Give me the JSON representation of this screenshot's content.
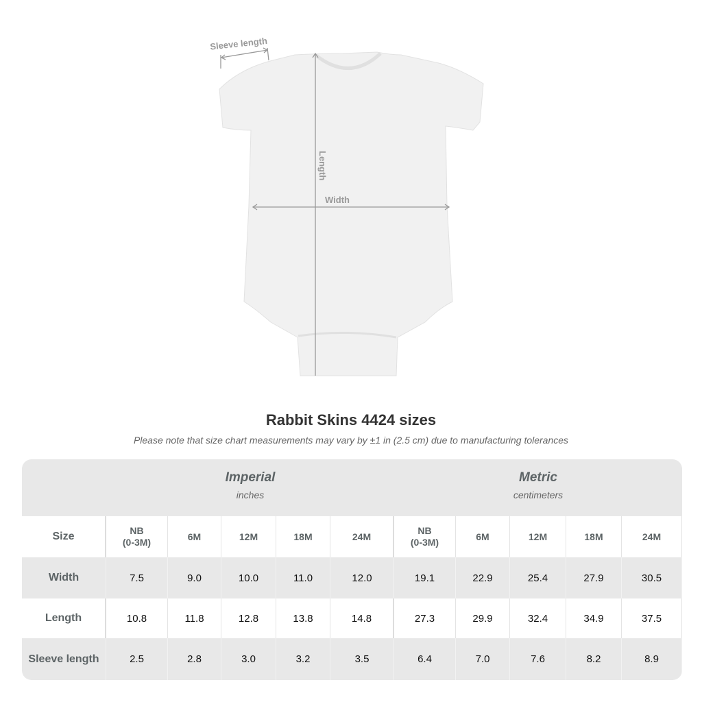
{
  "diagram": {
    "sleeve_label": "Sleeve length",
    "length_label": "Length",
    "width_label": "Width"
  },
  "title": "Rabbit Skins 4424 sizes",
  "note": "Please note that size chart measurements may vary by ±1 in (2.5 cm) due to manufacturing tolerances",
  "table": {
    "imperial": {
      "name": "Imperial",
      "unit": "inches"
    },
    "metric": {
      "name": "Metric",
      "unit": "centimeters"
    },
    "size_label": "Size",
    "sizes": [
      "NB\n(0-3M)",
      "6M",
      "12M",
      "18M",
      "24M"
    ],
    "rows": [
      {
        "label": "Width",
        "imperial": [
          "7.5",
          "9.0",
          "10.0",
          "11.0",
          "12.0"
        ],
        "metric": [
          "19.1",
          "22.9",
          "25.4",
          "27.9",
          "30.5"
        ]
      },
      {
        "label": "Length",
        "imperial": [
          "10.8",
          "11.8",
          "12.8",
          "13.8",
          "14.8"
        ],
        "metric": [
          "27.3",
          "29.9",
          "32.4",
          "34.9",
          "37.5"
        ]
      },
      {
        "label": "Sleeve length",
        "imperial": [
          "2.5",
          "2.8",
          "3.0",
          "3.2",
          "3.5"
        ],
        "metric": [
          "6.4",
          "7.0",
          "7.6",
          "8.2",
          "8.9"
        ]
      }
    ]
  },
  "colors": {
    "header_bg": "#e8e8e8",
    "label_text": "#5d6466",
    "title_text": "#333333"
  }
}
